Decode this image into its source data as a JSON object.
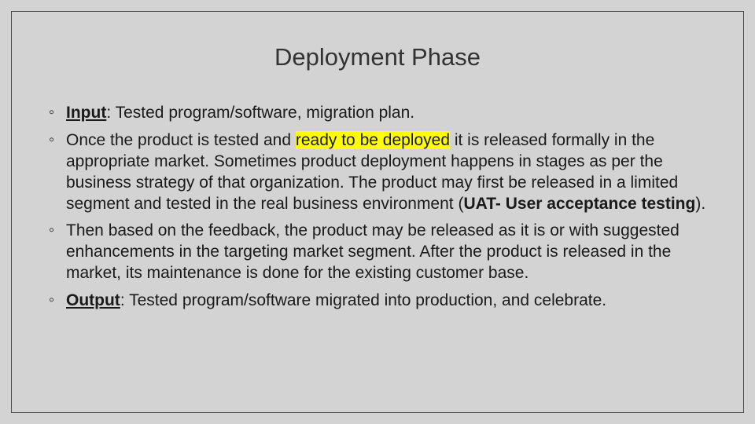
{
  "slide": {
    "title": "Deployment Phase",
    "background_color": "#d3d3d3",
    "border_color": "#4a4a4a",
    "text_color": "#1a1a1a",
    "title_color": "#333333",
    "highlight_color": "#ffff00",
    "title_fontsize": 31,
    "body_fontsize": 21,
    "bullets": [
      {
        "prefix_bold_underline": "Input",
        "colon": ": ",
        "text": "Tested program/software, migration plan."
      },
      {
        "pre_highlight": "Once the product is tested and ",
        "highlighted": "ready to be deployed",
        "post_highlight": " it is released formally in the appropriate market. Sometimes product deployment happens in stages as per the business strategy of that organization. The product may first be released in a limited segment and tested in the real business environment (",
        "bold_inline": "UAT- User acceptance testing",
        "tail": ")."
      },
      {
        "text": "Then based on the feedback, the product may be released as it is or with suggested enhancements in the targeting market segment. After the product is released in the market, its maintenance is done for the existing customer base."
      },
      {
        "prefix_bold_underline": "Output",
        "colon": ": ",
        "text": "Tested program/software migrated into production, and celebrate."
      }
    ]
  }
}
